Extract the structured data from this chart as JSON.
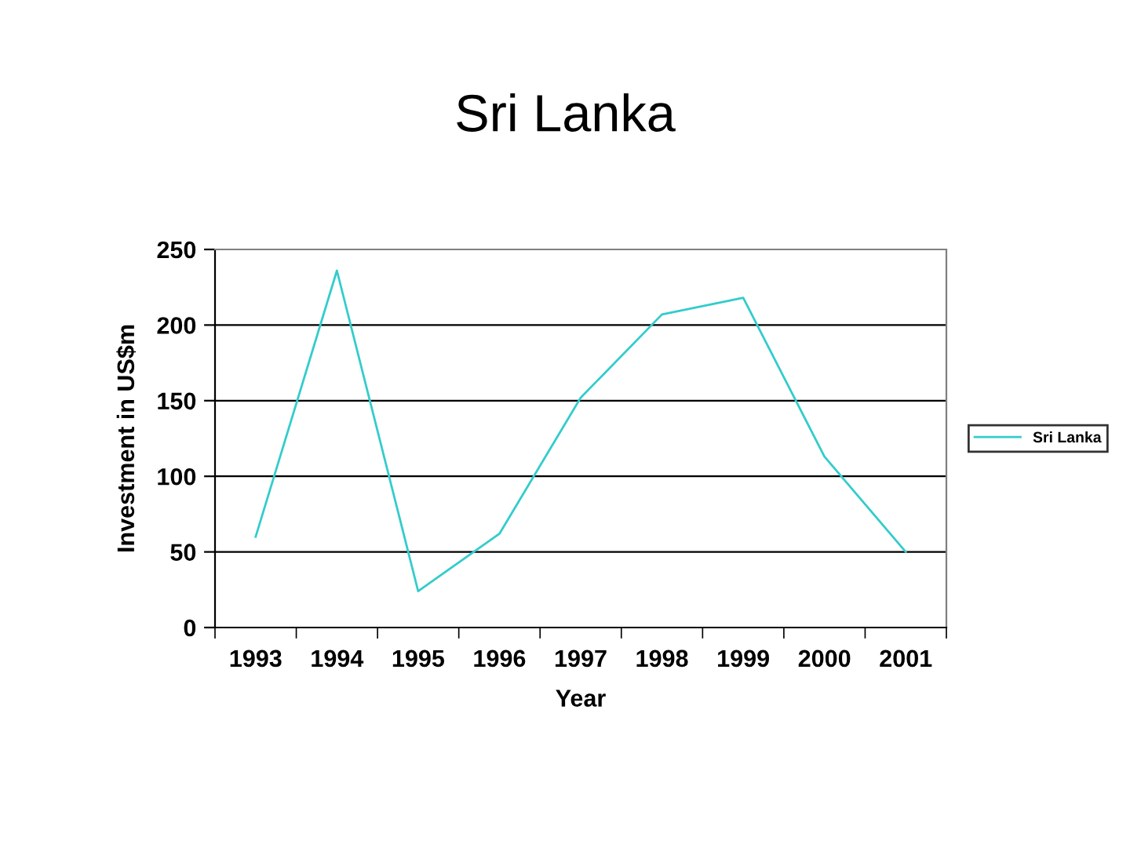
{
  "chart_data": {
    "type": "line",
    "title": "Sri Lanka",
    "xlabel": "Year",
    "ylabel": "Investment in US$m",
    "categories": [
      "1993",
      "1994",
      "1995",
      "1996",
      "1997",
      "1998",
      "1999",
      "2000",
      "2001"
    ],
    "series": [
      {
        "name": "Sri Lanka",
        "color": "#33cccc",
        "values": [
          60,
          236,
          24,
          62,
          152,
          207,
          218,
          113,
          50
        ]
      }
    ],
    "ylim": [
      0,
      250
    ],
    "yticks": [
      0,
      50,
      100,
      150,
      200,
      250
    ],
    "grid": "y",
    "legend": "right"
  }
}
